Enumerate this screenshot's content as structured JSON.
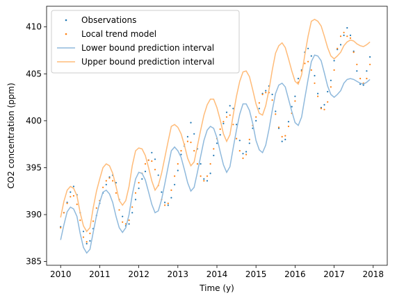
{
  "chart_data": {
    "type": "line",
    "xlabel": "Time (y)",
    "ylabel": "CO2 concentration (ppm)",
    "xlim": [
      2009.64,
      2018.36
    ],
    "ylim": [
      384.6,
      412.2
    ],
    "x_ticks": [
      2010,
      2011,
      2012,
      2013,
      2014,
      2015,
      2016,
      2017,
      2018
    ],
    "y_ticks": [
      385,
      390,
      395,
      400,
      405,
      410
    ],
    "grid": false,
    "legend_position": "top-left",
    "x": [
      2010.0,
      2010.083,
      2010.167,
      2010.25,
      2010.333,
      2010.417,
      2010.5,
      2010.583,
      2010.667,
      2010.75,
      2010.833,
      2010.917,
      2011.0,
      2011.083,
      2011.167,
      2011.25,
      2011.333,
      2011.417,
      2011.5,
      2011.583,
      2011.667,
      2011.75,
      2011.833,
      2011.917,
      2012.0,
      2012.083,
      2012.167,
      2012.25,
      2012.333,
      2012.417,
      2012.5,
      2012.583,
      2012.667,
      2012.75,
      2012.833,
      2012.917,
      2013.0,
      2013.083,
      2013.167,
      2013.25,
      2013.333,
      2013.417,
      2013.5,
      2013.583,
      2013.667,
      2013.75,
      2013.833,
      2013.917,
      2014.0,
      2014.083,
      2014.167,
      2014.25,
      2014.333,
      2014.417,
      2014.5,
      2014.583,
      2014.667,
      2014.75,
      2014.833,
      2014.917,
      2015.0,
      2015.083,
      2015.167,
      2015.25,
      2015.333,
      2015.417,
      2015.5,
      2015.583,
      2015.667,
      2015.75,
      2015.833,
      2015.917,
      2016.0,
      2016.083,
      2016.167,
      2016.25,
      2016.333,
      2016.417,
      2016.5,
      2016.583,
      2016.667,
      2016.75,
      2016.833,
      2016.917,
      2017.0,
      2017.083,
      2017.167,
      2017.25,
      2017.333,
      2017.417,
      2017.5,
      2017.583,
      2017.667,
      2017.75,
      2017.833,
      2017.917
    ],
    "series": [
      {
        "name": "Observations",
        "style": "dots",
        "color": "#1f77b4",
        "values": [
          388.7,
          390.2,
          391.3,
          392.4,
          393.0,
          392.1,
          390.2,
          388.2,
          386.9,
          387.2,
          388.5,
          389.9,
          391.2,
          392.3,
          393.2,
          394.0,
          394.2,
          393.4,
          391.6,
          389.8,
          388.8,
          389.0,
          390.2,
          391.6,
          392.8,
          393.8,
          394.6,
          395.8,
          396.6,
          395.9,
          394.2,
          392.4,
          391.3,
          391.0,
          391.8,
          393.2,
          394.7,
          396.4,
          397.3,
          398.3,
          399.8,
          398.6,
          397.0,
          395.4,
          393.8,
          393.6,
          394.4,
          396.3,
          397.6,
          398.5,
          399.7,
          400.9,
          401.6,
          401.3,
          399.6,
          397.9,
          396.5,
          396.7,
          397.6,
          399.2,
          400.0,
          401.3,
          402.9,
          403.2,
          403.7,
          402.8,
          401.0,
          399.2,
          397.8,
          398.0,
          399.9,
          401.5,
          402.6,
          404.5,
          405.4,
          407.3,
          407.7,
          406.9,
          404.8,
          402.9,
          401.4,
          401.7,
          403.1,
          404.3,
          406.4,
          407.6,
          408.1,
          409.1,
          409.9,
          409.1,
          407.4,
          405.3,
          403.9,
          403.8,
          405.3,
          406.8
        ]
      },
      {
        "name": "Local trend model",
        "style": "dots",
        "color": "#ff7f0e",
        "values": [
          388.6,
          390.2,
          391.2,
          391.9,
          392.0,
          391.1,
          389.4,
          387.6,
          387.1,
          388.0,
          389.3,
          390.7,
          391.5,
          392.9,
          393.6,
          393.9,
          393.6,
          392.3,
          390.5,
          389.2,
          389.0,
          389.4,
          390.8,
          392.3,
          393.4,
          394.4,
          395.4,
          395.8,
          395.7,
          394.8,
          393.1,
          391.6,
          391.0,
          391.2,
          392.6,
          394.1,
          395.4,
          396.8,
          397.5,
          397.8,
          397.7,
          396.8,
          395.4,
          394.1,
          393.6,
          394.1,
          395.4,
          397.0,
          398.1,
          399.1,
          399.9,
          400.4,
          400.6,
          399.6,
          398.1,
          396.8,
          396.0,
          396.4,
          398.0,
          399.5,
          400.4,
          401.9,
          402.8,
          403.0,
          403.0,
          402.2,
          400.7,
          399.3,
          398.3,
          398.4,
          399.4,
          400.8,
          402.1,
          404.1,
          405.3,
          406.1,
          406.3,
          405.4,
          404.0,
          402.6,
          401.3,
          401.2,
          402.0,
          403.6,
          405.4,
          407.7,
          409.0,
          409.4,
          409.0,
          408.8,
          407.3,
          406.0,
          404.5,
          404.0,
          404.5,
          406.0
        ]
      },
      {
        "name": "Lower bound prediction interval",
        "style": "line",
        "color": "#8fb9dc",
        "values": [
          387.3,
          388.9,
          390.3,
          390.8,
          390.6,
          389.8,
          388.0,
          386.5,
          385.9,
          386.3,
          388.1,
          389.9,
          391.3,
          392.4,
          392.6,
          392.2,
          391.3,
          389.8,
          388.6,
          388.1,
          388.6,
          390.0,
          392.1,
          393.8,
          394.5,
          394.4,
          393.7,
          392.4,
          391.1,
          390.2,
          390.4,
          391.6,
          393.3,
          395.1,
          396.8,
          397.2,
          396.8,
          396.1,
          394.8,
          393.4,
          392.5,
          392.9,
          394.5,
          396.2,
          397.9,
          399.0,
          399.4,
          399.2,
          398.2,
          396.7,
          395.3,
          394.5,
          395.1,
          397.1,
          399.0,
          400.7,
          401.8,
          401.8,
          401.1,
          399.7,
          397.9,
          396.9,
          396.6,
          397.4,
          399.1,
          401.1,
          402.9,
          403.8,
          404.0,
          403.6,
          402.3,
          401.0,
          399.8,
          399.5,
          400.4,
          402.4,
          404.4,
          406.3,
          407.0,
          406.9,
          406.4,
          405.1,
          403.7,
          402.8,
          402.5,
          402.8,
          403.2,
          404.0,
          404.4,
          404.5,
          404.4,
          404.2,
          404.0,
          403.9,
          404.1,
          404.4
        ]
      },
      {
        "name": "Upper bound prediction interval",
        "style": "line",
        "color": "#ffbb78",
        "values": [
          389.7,
          391.4,
          392.6,
          393.0,
          392.8,
          392.0,
          390.2,
          388.8,
          388.2,
          388.6,
          390.7,
          392.5,
          393.8,
          395.0,
          395.4,
          395.2,
          394.4,
          393.0,
          391.5,
          391.0,
          391.5,
          393.0,
          395.2,
          396.8,
          397.1,
          397.0,
          396.3,
          395.0,
          393.6,
          392.6,
          393.1,
          394.4,
          396.1,
          397.8,
          399.4,
          399.6,
          399.3,
          398.6,
          397.4,
          396.0,
          395.2,
          395.6,
          397.3,
          399.0,
          400.6,
          401.7,
          402.3,
          402.3,
          401.4,
          400.1,
          398.6,
          397.8,
          398.5,
          400.6,
          402.6,
          404.2,
          405.2,
          405.3,
          404.7,
          403.3,
          401.8,
          400.8,
          400.6,
          401.6,
          403.3,
          405.4,
          407.2,
          408.0,
          408.3,
          407.8,
          406.6,
          405.3,
          404.2,
          403.9,
          404.9,
          407.0,
          409.0,
          410.6,
          410.8,
          410.6,
          410.1,
          409.0,
          407.8,
          406.9,
          406.6,
          406.9,
          407.3,
          408.0,
          408.4,
          408.6,
          408.5,
          408.2,
          408.0,
          407.9,
          408.1,
          408.4
        ]
      }
    ]
  }
}
